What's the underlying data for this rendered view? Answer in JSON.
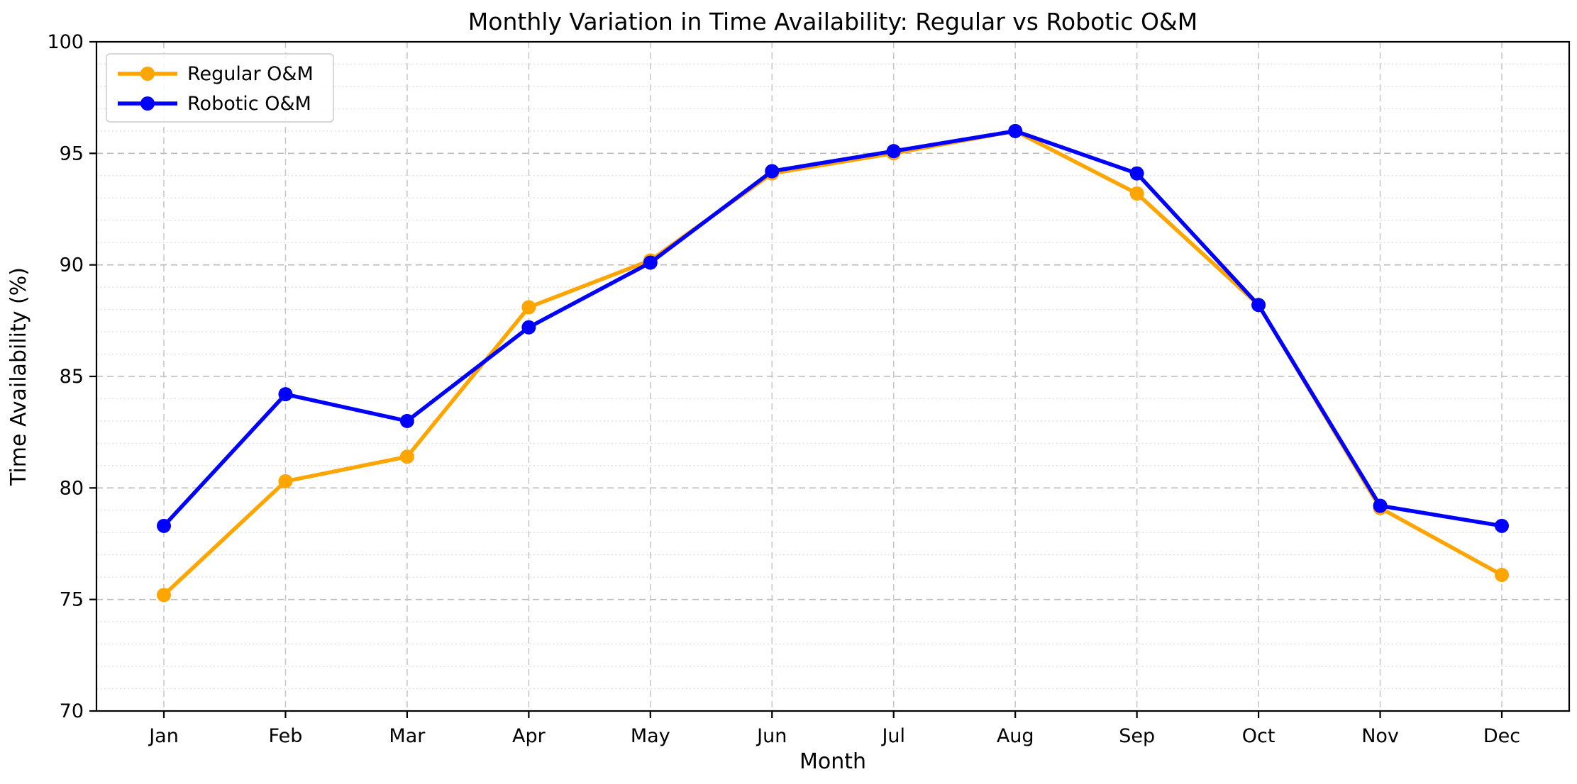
{
  "chart_data": {
    "type": "line",
    "title": "Monthly Variation in Time Availability: Regular vs Robotic O&M",
    "xlabel": "Month",
    "ylabel": "Time Availability (%)",
    "categories": [
      "Jan",
      "Feb",
      "Mar",
      "Apr",
      "May",
      "Jun",
      "Jul",
      "Aug",
      "Sep",
      "Oct",
      "Nov",
      "Dec"
    ],
    "series": [
      {
        "name": "Regular O&M",
        "color": "#FFA500",
        "values": [
          75.2,
          80.3,
          81.4,
          88.1,
          90.2,
          94.1,
          95.0,
          96.0,
          93.2,
          88.2,
          79.1,
          76.1
        ]
      },
      {
        "name": "Robotic O&M",
        "color": "#0000FF",
        "values": [
          78.3,
          84.2,
          83.0,
          87.2,
          90.1,
          94.2,
          95.1,
          96.0,
          94.1,
          88.2,
          79.2,
          78.3
        ]
      }
    ],
    "ylim": [
      70,
      100
    ],
    "yticks": [
      70,
      75,
      80,
      85,
      90,
      95,
      100
    ],
    "minor_step": 1,
    "grid": true,
    "legend_position": "upper-left",
    "colors": {
      "background": "#ffffff",
      "spine": "#000000",
      "grid_major": "#bbbbbb",
      "grid_minor": "#dedede",
      "grid_vertical": "#c9c9c9",
      "legend_border": "#cccccc"
    }
  }
}
